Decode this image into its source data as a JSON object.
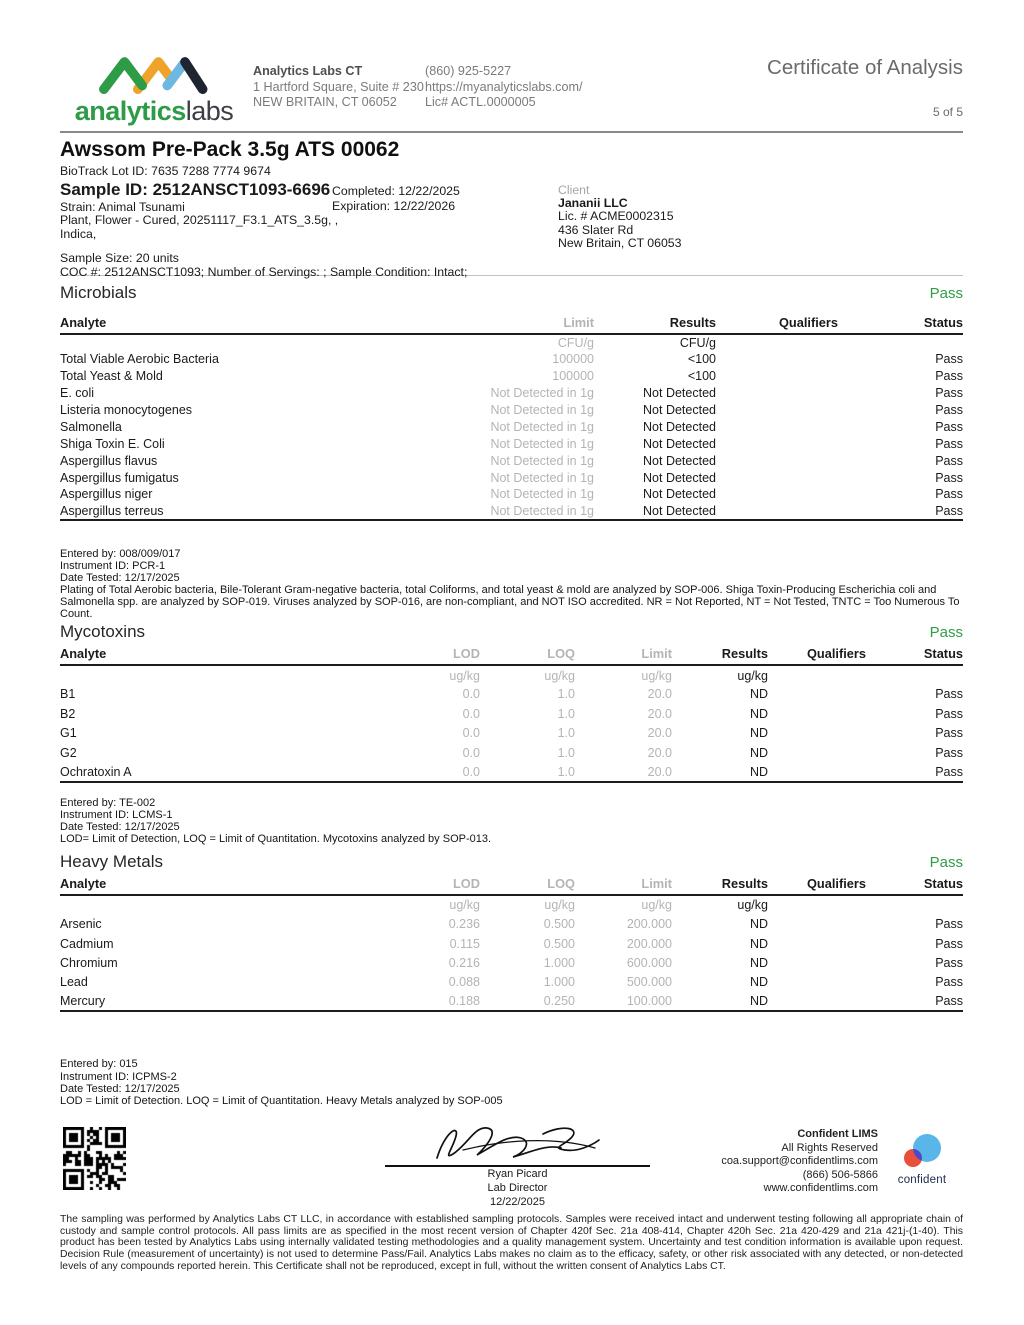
{
  "header": {
    "logo": {
      "primary": "analytics",
      "secondary": "labs"
    },
    "lab_name": "Analytics Labs CT",
    "address1": "1 Hartford Square, Suite # 230",
    "address2": "NEW BRITAIN, CT 06052",
    "phone": "(860) 925-5227",
    "website": "https://myanalyticslabs.com/",
    "license": "Lic# ACTL.0000005",
    "doc_title": "Certificate of Analysis",
    "page_indicator": "5 of 5"
  },
  "sample": {
    "title": "Awssom Pre-Pack 3.5g ATS 00062",
    "biotrack": "BioTrack Lot ID: 7635 7288 7774 9674",
    "sample_id": "Sample ID: 2512ANSCT1093-6696",
    "completed": "Completed: 12/22/2025",
    "expiration": "Expiration: 12/22/2026",
    "strain": "Strain: Animal Tsunami",
    "matrix": "Plant, Flower - Cured, 20251117_F3.1_ATS_3.5g, ,",
    "category": "Indica,",
    "size": "Sample Size: 20 units",
    "coc": "COC #: 2512ANSCT1093; Number of Servings: ; Sample Condition: Intact;"
  },
  "client": {
    "label": "Client",
    "name": "Jananii LLC",
    "license": "Lic. # ACME0002315",
    "address1": "436 Slater Rd",
    "address2": "New Britain, CT 06053"
  },
  "microbials": {
    "title": "Microbials",
    "status": "Pass",
    "headers": {
      "analyte": "Analyte",
      "limit": "Limit",
      "results": "Results",
      "qualifiers": "Qualifiers",
      "status": "Status"
    },
    "units": {
      "limit": "CFU/g",
      "results": "CFU/g"
    },
    "rows": [
      {
        "analyte": "Total Viable Aerobic Bacteria",
        "limit": "100000",
        "results": "<100",
        "qualifiers": "",
        "status": "Pass"
      },
      {
        "analyte": "Total Yeast & Mold",
        "limit": "100000",
        "results": "<100",
        "qualifiers": "",
        "status": "Pass"
      },
      {
        "analyte": "E. coli",
        "limit": "Not Detected in 1g",
        "results": "Not Detected",
        "qualifiers": "",
        "status": "Pass"
      },
      {
        "analyte": "Listeria monocytogenes",
        "limit": "Not Detected in 1g",
        "results": "Not Detected",
        "qualifiers": "",
        "status": "Pass"
      },
      {
        "analyte": "Salmonella",
        "limit": "Not Detected in 1g",
        "results": "Not Detected",
        "qualifiers": "",
        "status": "Pass"
      },
      {
        "analyte": "Shiga Toxin E. Coli",
        "limit": "Not Detected in 1g",
        "results": "Not Detected",
        "qualifiers": "",
        "status": "Pass"
      },
      {
        "analyte": "Aspergillus flavus",
        "limit": "Not Detected in 1g",
        "results": "Not Detected",
        "qualifiers": "",
        "status": "Pass"
      },
      {
        "analyte": "Aspergillus fumigatus",
        "limit": "Not Detected in 1g",
        "results": "Not Detected",
        "qualifiers": "",
        "status": "Pass"
      },
      {
        "analyte": "Aspergillus niger",
        "limit": "Not Detected in 1g",
        "results": "Not Detected",
        "qualifiers": "",
        "status": "Pass"
      },
      {
        "analyte": "Aspergillus terreus",
        "limit": "Not Detected in 1g",
        "results": "Not Detected",
        "qualifiers": "",
        "status": "Pass"
      }
    ],
    "entered_by": "Entered by: 008/009/017",
    "instrument": "Instrument ID: PCR-1",
    "date_tested": "Date Tested: 12/17/2025",
    "note": "Plating of Total Aerobic bacteria, Bile-Tolerant Gram-negative bacteria, total Coliforms, and total yeast & mold are analyzed by SOP-006. Shiga Toxin-Producing Escherichia coli and Salmonella spp. are analyzed by SOP-019. Viruses analyzed by SOP-016, are non-compliant, and NOT ISO accredited. NR = Not Reported, NT = Not Tested, TNTC = Too Numerous To Count."
  },
  "mycotoxins": {
    "title": "Mycotoxins",
    "status": "Pass",
    "headers": {
      "analyte": "Analyte",
      "lod": "LOD",
      "loq": "LOQ",
      "limit": "Limit",
      "results": "Results",
      "qualifiers": "Qualifiers",
      "status": "Status"
    },
    "units": {
      "lod": "ug/kg",
      "loq": "ug/kg",
      "limit": "ug/kg",
      "results": "ug/kg"
    },
    "rows": [
      {
        "analyte": "B1",
        "lod": "0.0",
        "loq": "1.0",
        "limit": "20.0",
        "results": "ND",
        "qualifiers": "",
        "status": "Pass"
      },
      {
        "analyte": "B2",
        "lod": "0.0",
        "loq": "1.0",
        "limit": "20.0",
        "results": "ND",
        "qualifiers": "",
        "status": "Pass"
      },
      {
        "analyte": "G1",
        "lod": "0.0",
        "loq": "1.0",
        "limit": "20.0",
        "results": "ND",
        "qualifiers": "",
        "status": "Pass"
      },
      {
        "analyte": "G2",
        "lod": "0.0",
        "loq": "1.0",
        "limit": "20.0",
        "results": "ND",
        "qualifiers": "",
        "status": "Pass"
      },
      {
        "analyte": "Ochratoxin A",
        "lod": "0.0",
        "loq": "1.0",
        "limit": "20.0",
        "results": "ND",
        "qualifiers": "",
        "status": "Pass"
      }
    ],
    "entered_by": "Entered by: TE-002",
    "instrument": "Instrument ID: LCMS-1",
    "date_tested": "Date Tested: 12/17/2025",
    "note": "LOD= Limit of Detection, LOQ = Limit of Quantitation. Mycotoxins analyzed by SOP-013."
  },
  "heavy_metals": {
    "title": "Heavy Metals",
    "status": "Pass",
    "headers": {
      "analyte": "Analyte",
      "lod": "LOD",
      "loq": "LOQ",
      "limit": "Limit",
      "results": "Results",
      "qualifiers": "Qualifiers",
      "status": "Status"
    },
    "units": {
      "lod": "ug/kg",
      "loq": "ug/kg",
      "limit": "ug/kg",
      "results": "ug/kg"
    },
    "rows": [
      {
        "analyte": "Arsenic",
        "lod": "0.236",
        "loq": "0.500",
        "limit": "200.000",
        "results": "ND",
        "qualifiers": "",
        "status": "Pass"
      },
      {
        "analyte": "Cadmium",
        "lod": "0.115",
        "loq": "0.500",
        "limit": "200.000",
        "results": "ND",
        "qualifiers": "",
        "status": "Pass"
      },
      {
        "analyte": "Chromium",
        "lod": "0.216",
        "loq": "1.000",
        "limit": "600.000",
        "results": "ND",
        "qualifiers": "",
        "status": "Pass"
      },
      {
        "analyte": "Lead",
        "lod": "0.088",
        "loq": "1.000",
        "limit": "500.000",
        "results": "ND",
        "qualifiers": "",
        "status": "Pass"
      },
      {
        "analyte": "Mercury",
        "lod": "0.188",
        "loq": "0.250",
        "limit": "100.000",
        "results": "ND",
        "qualifiers": "",
        "status": "Pass"
      }
    ],
    "entered_by": "Entered by: 015",
    "instrument": "Instrument ID: ICPMS-2",
    "date_tested": "Date Tested: 12/17/2025",
    "note": "LOD = Limit of Detection. LOQ = Limit of Quantitation. Heavy Metals analyzed by SOP-005"
  },
  "footer": {
    "signer_name": "Ryan Picard",
    "signer_title": "Lab Director",
    "sign_date": "12/22/2025",
    "lims": [
      "Confident LIMS",
      "All Rights Reserved",
      "coa.support@confidentlims.com",
      "(866) 506-5866",
      "www.confidentlims.com"
    ],
    "lims_logo_text": "confident"
  },
  "disclaimer": "The sampling was performed by Analytics Labs CT LLC, in accordance with established sampling protocols. Samples were received intact and underwent testing following all appropriate chain of custody and sample control protocols. All pass limits are as specified in the most recent version of Chapter 420f Sec. 21a 408-414, Chapter 420h Sec. 21a 420-429 and 21a 421j-(1-40). This product has been tested by Analytics Labs using internally validated testing methodologies and a quality management system. Uncertainty and test condition information is available upon request. Decision Rule (measurement of uncertainty) is not used to determine Pass/Fail. Analytics Labs makes no claim as to the efficacy, safety, or other risk associated with any detected, or non-detected levels of any compounds reported herein. This Certificate shall not be reproduced, except in full, without the written consent of Analytics Labs CT.",
  "colors": {
    "green": "#2f9e44",
    "orange": "#f0a32a",
    "blue": "#6cb8e0",
    "navy": "#1e2430"
  }
}
